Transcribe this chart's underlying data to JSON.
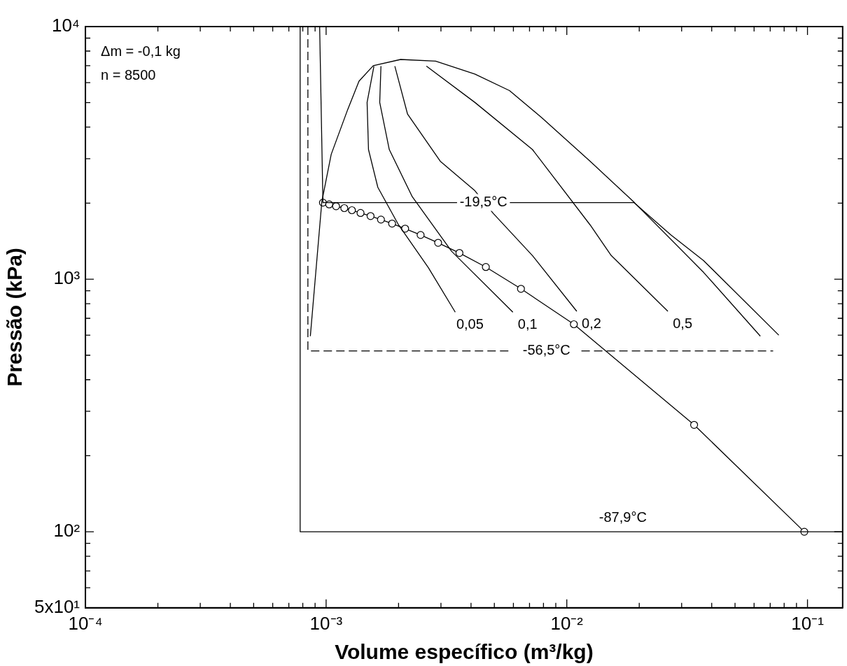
{
  "chart_data": {
    "type": "line",
    "xlabel": "Volume específico (m³/kg)",
    "ylabel": "Pressão (kPa)",
    "log": "xy",
    "grid": false,
    "legend": false,
    "xlim": [
      0.0001,
      0.14
    ],
    "ylim": [
      50,
      10000
    ],
    "xticks": [
      {
        "value": 0.0001,
        "label": "10⁻⁴"
      },
      {
        "value": 0.0002,
        "label": null
      },
      {
        "value": 0.0003,
        "label": null
      },
      {
        "value": 0.0004,
        "label": null
      },
      {
        "value": 0.0005,
        "label": null
      },
      {
        "value": 0.0006,
        "label": null
      },
      {
        "value": 0.0007,
        "label": null
      },
      {
        "value": 0.0008,
        "label": null
      },
      {
        "value": 0.0009,
        "label": null
      },
      {
        "value": 0.001,
        "label": "10⁻³"
      },
      {
        "value": 0.002,
        "label": null
      },
      {
        "value": 0.003,
        "label": null
      },
      {
        "value": 0.004,
        "label": null
      },
      {
        "value": 0.005,
        "label": null
      },
      {
        "value": 0.006,
        "label": null
      },
      {
        "value": 0.007,
        "label": null
      },
      {
        "value": 0.008,
        "label": null
      },
      {
        "value": 0.009,
        "label": null
      },
      {
        "value": 0.01,
        "label": "10⁻²"
      },
      {
        "value": 0.02,
        "label": null
      },
      {
        "value": 0.03,
        "label": null
      },
      {
        "value": 0.04,
        "label": null
      },
      {
        "value": 0.05,
        "label": null
      },
      {
        "value": 0.06,
        "label": null
      },
      {
        "value": 0.07,
        "label": null
      },
      {
        "value": 0.08,
        "label": null
      },
      {
        "value": 0.09,
        "label": null
      },
      {
        "value": 0.1,
        "label": "10⁻¹"
      }
    ],
    "yticks": [
      {
        "value": 50,
        "label": "5x10¹"
      },
      {
        "value": 60,
        "label": null
      },
      {
        "value": 70,
        "label": null
      },
      {
        "value": 80,
        "label": null
      },
      {
        "value": 90,
        "label": null
      },
      {
        "value": 100,
        "label": "10²"
      },
      {
        "value": 200,
        "label": null
      },
      {
        "value": 300,
        "label": null
      },
      {
        "value": 400,
        "label": null
      },
      {
        "value": 500,
        "label": null
      },
      {
        "value": 600,
        "label": null
      },
      {
        "value": 700,
        "label": null
      },
      {
        "value": 800,
        "label": null
      },
      {
        "value": 900,
        "label": null
      },
      {
        "value": 1000,
        "label": "10³"
      },
      {
        "value": 2000,
        "label": null
      },
      {
        "value": 3000,
        "label": null
      },
      {
        "value": 4000,
        "label": null
      },
      {
        "value": 5000,
        "label": null
      },
      {
        "value": 6000,
        "label": null
      },
      {
        "value": 7000,
        "label": null
      },
      {
        "value": 8000,
        "label": null
      },
      {
        "value": 9000,
        "label": null
      },
      {
        "value": 10000,
        "label": "10⁴"
      }
    ],
    "series": [
      {
        "type": "line",
        "color": "#000000",
        "marker": "none",
        "line_style": "solid",
        "x": [
          0.00086,
          0.00096,
          0.00105,
          0.00123,
          0.00137,
          0.00157,
          0.00204,
          0.00285,
          0.00415,
          0.00578,
          0.00787,
          0.0125,
          0.0191,
          0.037,
          0.0637
        ],
        "values": [
          595,
          2030,
          3120,
          4700,
          6080,
          7000,
          7410,
          7300,
          6490,
          5580,
          4360,
          2930,
          2010,
          1064,
          595
        ]
      },
      {
        "type": "line",
        "color": "#000000",
        "marker": "none",
        "line_style": "solid",
        "x": [
          0.00078,
          0.00078,
          0.14
        ],
        "values": [
          10000,
          100,
          100
        ]
      },
      {
        "type": "line",
        "name": "-56,5°C",
        "color": "#000000",
        "marker": "none",
        "line_style": "dashed",
        "x": [
          0.00084,
          0.00084,
          0.0059,
          0.0085,
          0.0115,
          0.072
        ],
        "values": [
          10000,
          520,
          520,
          null,
          520,
          520
        ]
      },
      {
        "type": "line",
        "name": "-19,5°C",
        "color": "#000000",
        "marker": "none",
        "line_style": "solid",
        "x": [
          0.00094,
          0.00097,
          0.0035,
          0.0045,
          0.0058,
          0.019,
          0.027,
          0.037,
          0.076
        ],
        "values": [
          10000,
          2010,
          2010,
          null,
          2010,
          2010,
          1500,
          1185,
          600
        ]
      },
      {
        "type": "line",
        "name": "0,05",
        "color": "#000000",
        "marker": "none",
        "line_style": "solid",
        "x": [
          0.00158,
          0.00148,
          0.0015,
          0.00164,
          0.002,
          0.00266,
          0.00344
        ],
        "values": [
          6970,
          5010,
          3260,
          2310,
          1640,
          1110,
          740
        ]
      },
      {
        "type": "line",
        "name": "0,1",
        "color": "#000000",
        "marker": "none",
        "line_style": "solid",
        "x": [
          0.00169,
          0.00167,
          0.00183,
          0.00228,
          0.00332,
          0.00597
        ],
        "values": [
          6970,
          5010,
          3260,
          2120,
          1290,
          740
        ]
      },
      {
        "type": "line",
        "name": "0,2",
        "color": "#000000",
        "marker": "none",
        "line_style": "solid",
        "x": [
          0.00193,
          0.00218,
          0.00298,
          0.00415,
          0.00495,
          0.0072,
          0.011
        ],
        "values": [
          6970,
          4500,
          2930,
          2240,
          1820,
          1240,
          746
        ]
      },
      {
        "type": "line",
        "name": "0,5",
        "color": "#000000",
        "marker": "none",
        "line_style": "solid",
        "x": [
          0.00261,
          0.00415,
          0.0072,
          0.0125,
          0.0153,
          0.0263
        ],
        "values": [
          6970,
          5010,
          3260,
          1640,
          1240,
          746
        ]
      },
      {
        "type": "line",
        "color": "#000000",
        "marker": "circle",
        "line_style": "solid",
        "x": [
          0.00097,
          0.00103,
          0.0011,
          0.00119,
          0.00128,
          0.00139,
          0.00153,
          0.00169,
          0.00188,
          0.00213,
          0.00247,
          0.00292,
          0.00358,
          0.00461,
          0.00645,
          0.0107,
          0.0338,
          0.097
        ],
        "values": [
          2010,
          1977,
          1944,
          1911,
          1875,
          1828,
          1778,
          1722,
          1660,
          1585,
          1496,
          1393,
          1270,
          1117,
          916,
          663,
          265,
          100
        ]
      }
    ],
    "annotations": [
      "Δm = -0,1 kg",
      "n = 8500",
      {
        "text": "-87,9°C",
        "x": 0.0171,
        "y": 100
      }
    ]
  }
}
